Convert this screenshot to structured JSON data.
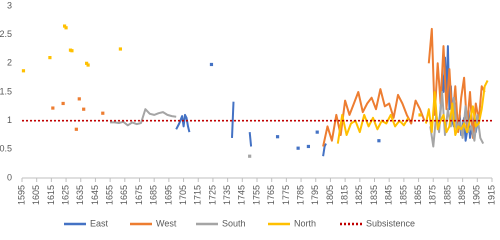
{
  "chart_data": {
    "type": "line",
    "xlim": [
      1595,
      1915
    ],
    "xticks": [
      1595,
      1605,
      1615,
      1625,
      1635,
      1645,
      1655,
      1665,
      1675,
      1685,
      1695,
      1705,
      1715,
      1725,
      1735,
      1745,
      1755,
      1765,
      1775,
      1785,
      1795,
      1805,
      1815,
      1825,
      1835,
      1845,
      1855,
      1865,
      1875,
      1885,
      1895,
      1905,
      1915
    ],
    "ylim": [
      0,
      3
    ],
    "yticks": [
      0,
      0.5,
      1,
      1.5,
      2,
      2.5,
      3
    ],
    "grid": false,
    "legend": "bottom",
    "series": [
      {
        "name": "East",
        "color": "#4472c4",
        "x": [
          1700,
          1702,
          1704,
          1705,
          1706,
          1707,
          1708,
          1709,
          null,
          1724,
          null,
          1738,
          1739,
          null,
          1750,
          1751,
          null,
          1769,
          null,
          1783,
          null,
          1790,
          null,
          1796,
          null,
          1800,
          1801,
          1802,
          null,
          1838,
          null,
          1879,
          1880,
          1881,
          1882,
          1883,
          1884,
          1885,
          1886,
          1887,
          1888,
          1889,
          1890,
          1891,
          1892,
          1893,
          1894,
          1895,
          1896,
          1897,
          1898,
          1899,
          1900,
          1901,
          1902,
          1903,
          1904,
          1905
        ],
        "values": [
          0.85,
          0.95,
          1.08,
          0.9,
          1.1,
          1.05,
          0.9,
          0.8,
          null,
          1.98,
          null,
          0.7,
          1.33,
          null,
          0.8,
          0.55,
          null,
          0.72,
          null,
          0.52,
          null,
          0.55,
          null,
          0.8,
          null,
          0.38,
          0.55,
          0.6,
          null,
          0.65,
          null,
          0.95,
          1.2,
          1.8,
          1.5,
          2.1,
          1.4,
          2.3,
          1.2,
          1.6,
          1.0,
          0.9,
          1.3,
          0.95,
          0.85,
          1.1,
          0.75,
          0.9,
          1.05,
          0.65,
          0.8,
          1.2,
          0.7,
          0.9,
          0.75,
          1.1,
          0.8,
          0.95
        ]
      },
      {
        "name": "West",
        "color": "#ed7d31",
        "x": [
          1616,
          null,
          1623,
          null,
          1632,
          null,
          1634,
          null,
          1637,
          null,
          1650,
          null,
          1800,
          1803,
          1806,
          1809,
          1812,
          1815,
          1818,
          1821,
          1824,
          1827,
          1830,
          1833,
          1836,
          1839,
          1842,
          1845,
          1848,
          1851,
          1854,
          1857,
          1860,
          1863,
          1866,
          1869,
          null,
          1872,
          1874,
          1876,
          1878,
          1880,
          1882,
          1884,
          1886,
          1888,
          1890,
          1892,
          1894,
          1896,
          1898,
          1900,
          1902,
          1904,
          1906,
          1908,
          1910
        ],
        "values": [
          1.22,
          null,
          1.3,
          null,
          0.85,
          null,
          1.38,
          null,
          1.2,
          null,
          1.13,
          null,
          0.55,
          0.9,
          0.65,
          1.1,
          0.75,
          1.35,
          1.1,
          1.3,
          1.5,
          1.15,
          1.3,
          1.4,
          1.2,
          1.55,
          1.25,
          1.3,
          1.05,
          1.45,
          1.3,
          1.1,
          0.95,
          1.35,
          1.2,
          1.0,
          null,
          2.0,
          2.6,
          1.1,
          2.0,
          1.3,
          2.3,
          1.2,
          1.9,
          1.0,
          1.6,
          0.8,
          1.4,
          1.75,
          0.9,
          1.5,
          0.7,
          1.3,
          1.0,
          1.6,
          1.5
        ]
      },
      {
        "name": "South",
        "color": "#a5a5a5",
        "x": [
          1655,
          1658,
          1661,
          1664,
          1667,
          1670,
          1673,
          1676,
          1679,
          1682,
          1685,
          1688,
          1691,
          1694,
          1697,
          1700,
          null,
          1750,
          null,
          1873,
          1875,
          1877,
          1879,
          1881,
          1883,
          1885,
          1887,
          1889,
          1891,
          1893,
          1895,
          1897,
          1899,
          1901,
          1903,
          1905,
          1907,
          1909
        ],
        "values": [
          0.97,
          0.97,
          0.96,
          0.98,
          0.92,
          0.97,
          0.94,
          0.96,
          1.2,
          1.12,
          1.1,
          1.13,
          1.15,
          1.1,
          1.08,
          1.07,
          null,
          0.38,
          null,
          0.9,
          0.55,
          1.1,
          0.8,
          1.5,
          0.75,
          1.2,
          0.9,
          1.4,
          0.85,
          1.0,
          0.7,
          1.25,
          0.8,
          0.9,
          0.65,
          1.1,
          0.7,
          0.6
        ]
      },
      {
        "name": "North",
        "color": "#ffc000",
        "x": [
          1596,
          null,
          1614,
          null,
          1624,
          null,
          1625,
          null,
          1628,
          null,
          1629,
          null,
          1639,
          null,
          1640,
          null,
          1662,
          null,
          1810,
          1813,
          1816,
          1819,
          1822,
          1825,
          1828,
          1831,
          1834,
          1837,
          1840,
          1843,
          1846,
          1849,
          1852,
          1855,
          1858,
          null,
          1866,
          null,
          1870,
          1872,
          1874,
          1876,
          1878,
          1880,
          1882,
          1884,
          1886,
          1888,
          1890,
          1892,
          1894,
          1896,
          1898,
          1900,
          1902,
          1904,
          1906,
          1908,
          1910,
          1912
        ],
        "values": [
          1.87,
          null,
          2.1,
          null,
          2.65,
          null,
          2.62,
          null,
          2.23,
          null,
          2.22,
          null,
          2.0,
          null,
          1.97,
          null,
          2.25,
          null,
          0.6,
          1.1,
          0.75,
          0.95,
          1.0,
          0.8,
          1.1,
          0.9,
          1.05,
          0.85,
          1.0,
          0.95,
          1.1,
          0.9,
          1.0,
          0.92,
          1.05,
          null,
          1.1,
          null,
          0.95,
          1.2,
          0.8,
          1.5,
          0.85,
          1.0,
          1.1,
          0.8,
          0.9,
          1.3,
          0.75,
          0.9,
          0.85,
          0.95,
          0.8,
          1.0,
          1.25,
          0.9,
          0.95,
          1.2,
          1.6,
          1.7
        ]
      },
      {
        "name": "Subsistence",
        "color": "#c00000",
        "dash": "dotted",
        "x": [
          1595,
          1915
        ],
        "values": [
          1,
          1
        ]
      }
    ]
  }
}
